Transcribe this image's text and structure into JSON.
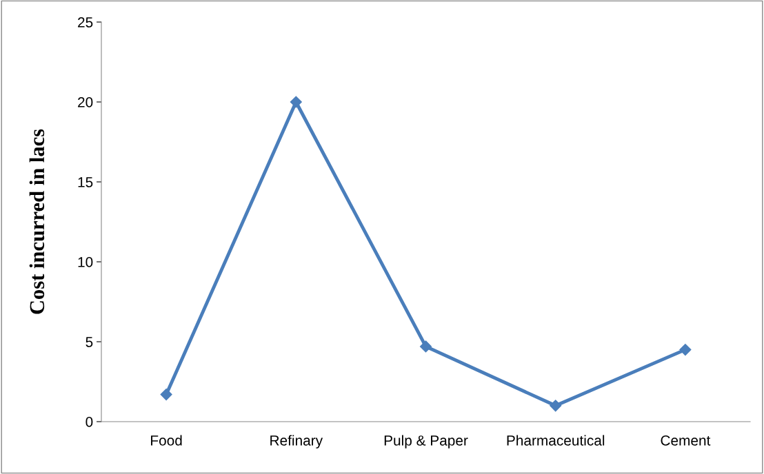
{
  "chart_data": {
    "type": "line",
    "ylabel": "Cost incurred in lacs",
    "categories": [
      "Food",
      "Refinary",
      "Pulp & Paper",
      "Pharmaceutical",
      "Cement"
    ],
    "series": [
      {
        "color": "#4a7ebb",
        "values": [
          1.7,
          20,
          4.7,
          1,
          4.5
        ]
      }
    ],
    "ylim": [
      0,
      25
    ],
    "yticks": [
      0,
      5,
      10,
      15,
      20,
      25
    ],
    "marker": "diamond",
    "line_style": "solid",
    "grid": false,
    "legend": false
  }
}
